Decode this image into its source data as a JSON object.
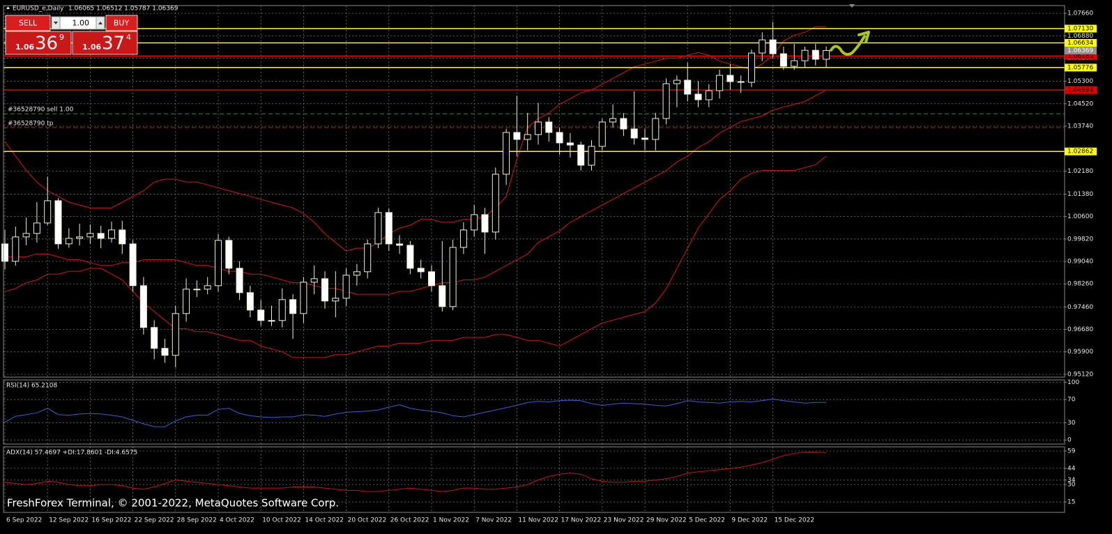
{
  "header": {
    "symbol": "EURUSD_e,Daily",
    "ohlc": "1.06065 1.06512 1.05787 1.06369"
  },
  "trade_panel": {
    "sell": "SELL",
    "buy": "BUY",
    "lot": "1.00",
    "bid_prefix": "1.06",
    "bid_pips": "36",
    "bid_point": "9",
    "ask_prefix": "1.06",
    "ask_pips": "37",
    "ask_point": "4"
  },
  "footer": "FreshForex Terminal, © 2001-2022, MetaQuotes Software Corp.",
  "chart_data": [
    {
      "type": "candlestick",
      "categories": [
        "6 Sep 2022",
        null,
        null,
        null,
        "12 Sep 2022",
        null,
        null,
        null,
        "16 Sep 2022",
        null,
        null,
        null,
        "22 Sep 2022",
        null,
        null,
        null,
        "28 Sep 2022",
        null,
        null,
        null,
        "4 Oct 2022",
        null,
        null,
        null,
        "10 Oct 2022",
        null,
        null,
        null,
        "14 Oct 2022",
        null,
        null,
        null,
        "20 Oct 2022",
        null,
        null,
        null,
        "26 Oct 2022",
        null,
        null,
        null,
        "1 Nov 2022",
        null,
        null,
        null,
        "7 Nov 2022",
        null,
        null,
        null,
        "11 Nov 2022",
        null,
        null,
        null,
        "17 Nov 2022",
        null,
        null,
        null,
        "23 Nov 2022",
        null,
        null,
        null,
        "29 Nov 2022",
        null,
        null,
        null,
        "5 Dec 2022",
        null,
        null,
        null,
        "9 Dec 2022",
        null,
        null,
        null,
        "15 Dec 2022",
        null,
        null,
        null,
        null,
        null
      ],
      "open": [
        0.9965,
        0.99045,
        0.99892,
        1.00013,
        1.00376,
        1.0115,
        0.9965,
        0.99843,
        0.99892,
        1.00013,
        0.99843,
        1.00134,
        0.9965,
        0.98198,
        0.96746,
        0.9602,
        0.95778,
        0.9723,
        0.98077,
        0.98077,
        0.98198,
        0.99771,
        0.98803,
        0.97956,
        0.97351,
        0.96988,
        0.96988,
        0.97714,
        0.9723,
        0.98319,
        0.9844,
        0.97665,
        0.97762,
        0.98561,
        0.98682,
        0.9965,
        1.00739,
        0.9965,
        0.99601,
        0.98803,
        0.98682,
        0.98198,
        0.97472,
        0.99529,
        1.00134,
        1.00666,
        1.00061,
        1.0207,
        1.03522,
        1.0328,
        1.03449,
        1.03885,
        1.03522,
        1.03159,
        1.03086,
        1.02384,
        1.03038,
        1.03885,
        1.04006,
        1.03643,
        1.03328,
        1.0328,
        1.04006,
        1.05216,
        1.05337,
        1.04853,
        1.04659,
        1.04974,
        1.05506,
        1.05288,
        1.05264,
        1.06281,
        1.0674,
        1.06256,
        1.05821,
        1.06014,
        1.06377,
        1.06065
      ],
      "high": [
        1.0013,
        1.0025,
        1.0056,
        1.011,
        1.0198,
        1.0124,
        1.0019,
        1.0035,
        1.0032,
        1.0028,
        1.0042,
        1.0045,
        0.9978,
        0.985,
        0.97,
        0.9635,
        0.975,
        0.9845,
        0.9838,
        0.985,
        0.9999,
        0.999,
        0.9905,
        0.982,
        0.977,
        0.975,
        0.981,
        0.979,
        0.985,
        0.989,
        0.987,
        0.987,
        0.988,
        0.9895,
        0.998,
        1.009,
        1.0088,
        0.9995,
        0.9975,
        0.991,
        0.989,
        0.9975,
        0.998,
        1.004,
        1.01,
        1.009,
        1.023,
        1.0365,
        1.048,
        1.042,
        1.0455,
        1.0405,
        1.037,
        1.035,
        1.032,
        1.0325,
        1.04,
        1.045,
        1.042,
        1.0495,
        1.0365,
        1.042,
        1.054,
        1.055,
        1.0595,
        1.053,
        1.052,
        1.057,
        1.059,
        1.055,
        1.064,
        1.07,
        1.0736,
        1.065,
        1.066,
        1.065,
        1.066,
        1.06512
      ],
      "low": [
        0.9876,
        0.989,
        0.996,
        0.997,
        1.003,
        0.9948,
        0.9952,
        0.996,
        0.9965,
        0.995,
        0.997,
        0.993,
        0.98,
        0.965,
        0.9564,
        0.9552,
        0.9536,
        0.9695,
        0.978,
        0.979,
        0.98,
        0.986,
        0.977,
        0.971,
        0.968,
        0.968,
        0.9675,
        0.9635,
        0.969,
        0.979,
        0.974,
        0.971,
        0.975,
        0.982,
        0.9845,
        0.995,
        0.994,
        0.993,
        0.986,
        0.9845,
        0.98,
        0.973,
        0.9735,
        0.993,
        0.999,
        0.993,
        0.998,
        1.017,
        1.027,
        1.029,
        1.031,
        1.032,
        1.0275,
        1.0265,
        1.022,
        1.022,
        1.029,
        1.037,
        1.034,
        1.031,
        1.029,
        1.029,
        1.038,
        1.044,
        1.046,
        1.044,
        1.044,
        1.047,
        1.05,
        1.049,
        1.051,
        1.06,
        1.061,
        1.057,
        1.057,
        1.058,
        1.0585,
        1.05787
      ],
      "close": [
        0.99045,
        0.99892,
        1.00013,
        1.00376,
        1.0115,
        0.9965,
        0.99843,
        0.99892,
        1.00013,
        0.99843,
        1.00134,
        0.9965,
        0.98198,
        0.96746,
        0.9602,
        0.95778,
        0.9723,
        0.98077,
        0.98077,
        0.98198,
        0.99771,
        0.98803,
        0.97956,
        0.97351,
        0.96988,
        0.96988,
        0.97714,
        0.9723,
        0.98319,
        0.9844,
        0.97665,
        0.97762,
        0.98561,
        0.98682,
        0.9965,
        1.00739,
        0.9965,
        0.99601,
        0.98803,
        0.98682,
        0.98198,
        0.97472,
        0.99529,
        1.00134,
        1.00666,
        1.00061,
        1.0207,
        1.03522,
        1.0328,
        1.03449,
        1.03885,
        1.03522,
        1.03159,
        1.03086,
        1.02384,
        1.03038,
        1.03885,
        1.04006,
        1.03643,
        1.03328,
        1.0328,
        1.04006,
        1.05216,
        1.05337,
        1.04853,
        1.04659,
        1.04974,
        1.05506,
        1.05288,
        1.05264,
        1.06281,
        1.0674,
        1.06256,
        1.05821,
        1.06014,
        1.06377,
        1.06065,
        1.06369
      ],
      "bull_color": "#000000",
      "bear_color": "#ffffff",
      "wick_color": "#f0f0d8",
      "overlays": [
        {
          "color": "#d01818",
          "values": [
            1.032,
            1.027,
            1.022,
            1.018,
            1.015,
            1.013,
            1.011,
            1.01,
            1.009,
            1.009,
            1.009,
            1.011,
            1.013,
            1.015,
            1.018,
            1.019,
            1.019,
            1.018,
            1.018,
            1.017,
            1.016,
            1.015,
            1.014,
            1.013,
            1.012,
            1.011,
            1.01,
            1.009,
            1.007,
            1.004,
            1.0,
            0.997,
            0.994,
            0.995,
            0.995,
            0.997,
            1.0,
            1.002,
            1.003,
            1.005,
            1.005,
            1.004,
            1.004,
            1.005,
            1.005,
            1.006,
            1.009,
            1.013,
            1.026,
            1.037,
            1.04,
            1.042,
            1.045,
            1.047,
            1.049,
            1.05,
            1.052,
            1.054,
            1.056,
            1.058,
            1.059,
            1.06,
            1.061,
            1.061,
            1.062,
            1.063,
            1.062,
            1.06,
            1.059,
            1.058,
            1.057,
            1.059,
            1.062,
            1.067,
            1.069,
            1.07,
            1.072,
            1.072
          ]
        },
        {
          "color": "#d01818",
          "values": [
            0.992,
            0.992,
            0.992,
            0.993,
            0.993,
            0.992,
            0.991,
            0.991,
            0.99,
            0.989,
            0.989,
            0.99,
            0.99,
            0.991,
            0.991,
            0.991,
            0.991,
            0.99,
            0.989,
            0.989,
            0.988,
            0.987,
            0.987,
            0.986,
            0.986,
            0.985,
            0.984,
            0.983,
            0.983,
            0.982,
            0.981,
            0.981,
            0.98,
            0.979,
            0.979,
            0.979,
            0.979,
            0.98,
            0.98,
            0.981,
            0.982,
            0.983,
            0.983,
            0.984,
            0.984,
            0.985,
            0.987,
            0.989,
            0.991,
            0.993,
            0.997,
            0.999,
            1.001,
            1.004,
            1.006,
            1.008,
            1.01,
            1.012,
            1.014,
            1.016,
            1.018,
            1.02,
            1.022,
            1.025,
            1.027,
            1.03,
            1.032,
            1.035,
            1.037,
            1.039,
            1.04,
            1.041,
            1.043,
            1.044,
            1.045,
            1.046,
            1.048,
            1.05
          ]
        },
        {
          "color": "#d01818",
          "values": [
            0.98,
            0.981,
            0.983,
            0.984,
            0.986,
            0.986,
            0.987,
            0.987,
            0.988,
            0.988,
            0.986,
            0.984,
            0.98,
            0.976,
            0.973,
            0.97,
            0.967,
            0.967,
            0.966,
            0.966,
            0.965,
            0.964,
            0.963,
            0.963,
            0.961,
            0.96,
            0.959,
            0.957,
            0.957,
            0.957,
            0.957,
            0.958,
            0.958,
            0.959,
            0.96,
            0.961,
            0.961,
            0.962,
            0.962,
            0.962,
            0.963,
            0.963,
            0.963,
            0.964,
            0.964,
            0.964,
            0.965,
            0.965,
            0.964,
            0.963,
            0.963,
            0.962,
            0.961,
            0.963,
            0.965,
            0.967,
            0.969,
            0.97,
            0.971,
            0.972,
            0.973,
            0.976,
            0.981,
            0.988,
            0.995,
            1.002,
            1.007,
            1.012,
            1.015,
            1.019,
            1.021,
            1.022,
            1.022,
            1.022,
            1.022,
            1.023,
            1.024,
            1.027
          ]
        }
      ],
      "levels": [
        {
          "value": 1.0713,
          "label": "1.07130",
          "color": "#ffff00"
        },
        {
          "value": 1.06634,
          "label": "1.06634",
          "color": "#ffff00"
        },
        {
          "value": 1.0618,
          "label": "1.06180",
          "color": "#e00000"
        },
        {
          "value": 1.05776,
          "label": "1.05776",
          "color": "#ffff00"
        },
        {
          "value": 1.04996,
          "label": "1.04996",
          "color": "#e00000"
        },
        {
          "value": 1.02862,
          "label": "1.02862",
          "color": "#ffff00"
        }
      ],
      "trade_lines": [
        {
          "value": 1.0417,
          "text": "#36528790 sell 1.00",
          "color": "#2f8f2f"
        },
        {
          "value": 1.0369,
          "text": "#36528790 tp",
          "color": "#c02020"
        }
      ],
      "current_price": {
        "value": 1.06369,
        "label": "1.06369",
        "color": "#909090"
      },
      "ylim": [
        0.9502,
        1.0793
      ],
      "yticks": [
        {
          "value": 1.0766,
          "label": "1.07660"
        },
        {
          "value": 1.0688,
          "label": "1.06880"
        },
        {
          "value": 1.061,
          "label": "1.06100"
        },
        {
          "value": 1.053,
          "label": "1.05300"
        },
        {
          "value": 1.0452,
          "label": "1.04520"
        },
        {
          "value": 1.0374,
          "label": "1.03740"
        },
        {
          "value": 1.0218,
          "label": "1.02180"
        },
        {
          "value": 1.0138,
          "label": "1.01380"
        },
        {
          "value": 1.006,
          "label": "1.00600"
        },
        {
          "value": 0.9982,
          "label": "0.99820"
        },
        {
          "value": 0.9904,
          "label": "0.99040"
        },
        {
          "value": 0.9826,
          "label": "0.98260"
        },
        {
          "value": 0.9746,
          "label": "0.97460"
        },
        {
          "value": 0.9668,
          "label": "0.96680"
        },
        {
          "value": 0.959,
          "label": "0.95900"
        },
        {
          "value": 0.9512,
          "label": "0.95120"
        }
      ],
      "grid": true
    },
    {
      "type": "line",
      "title": "RSI(14) 65.2108",
      "color": "#3a5fd0",
      "values": [
        31,
        41,
        44,
        47,
        55,
        44,
        43,
        45,
        46,
        45,
        43,
        40,
        34,
        28,
        23,
        23,
        33,
        40,
        43,
        43,
        53,
        55,
        46,
        42,
        40,
        39,
        40,
        40,
        44,
        43,
        41,
        45,
        48,
        49,
        50,
        52,
        57,
        61,
        55,
        52,
        50,
        47,
        42,
        40,
        44,
        48,
        52,
        56,
        60,
        65,
        67,
        66,
        68,
        69,
        68,
        63,
        60,
        62,
        64,
        63,
        62,
        60,
        59,
        63,
        68,
        66,
        65,
        64,
        66,
        67,
        66,
        68,
        71,
        68,
        66,
        64,
        65,
        65.2108
      ],
      "ylim": [
        -7,
        104
      ],
      "yticks": [
        100,
        70,
        30,
        0
      ],
      "grid": true
    },
    {
      "type": "line",
      "title": "ADX(14) 57.4697 +DI:17.8601 -DI:4.6575",
      "color": "#c01818",
      "values": [
        32,
        31,
        30,
        31,
        33,
        32,
        30,
        29,
        29,
        30,
        30,
        29,
        27,
        26,
        28,
        31,
        34,
        33,
        32,
        31,
        30,
        29,
        28,
        27,
        27,
        27,
        27,
        28,
        28,
        28,
        27,
        26,
        25,
        25,
        24,
        24,
        25,
        26,
        27,
        26,
        25,
        24,
        25,
        27,
        27,
        26,
        26,
        27,
        28,
        30,
        34,
        37,
        39,
        40,
        39,
        35,
        33,
        32,
        32,
        33,
        33,
        34,
        35,
        37,
        40,
        41,
        42,
        43,
        44,
        45,
        47,
        49,
        52,
        55,
        57,
        58,
        58,
        57.4697
      ],
      "ylim": [
        6,
        62.6
      ],
      "yticks": [
        59,
        44,
        34,
        30,
        15
      ],
      "grid": true
    }
  ]
}
